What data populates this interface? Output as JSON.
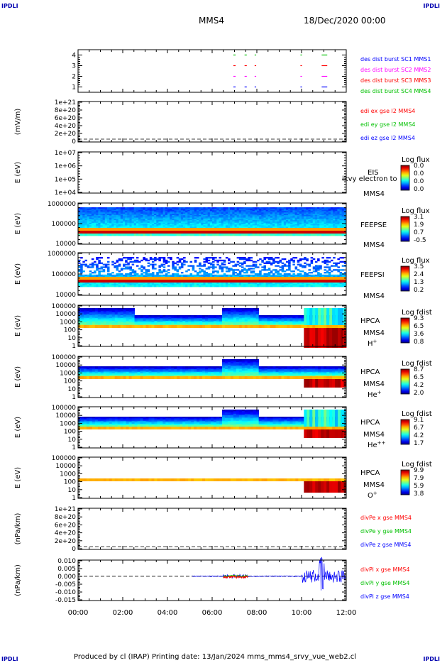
{
  "corners": {
    "tl": "IPDLI",
    "tr": "IPDLI",
    "bl": "IPDLI",
    "br": "IPDLI"
  },
  "header": {
    "spacecraft": "MMS4",
    "date": "18/Dec/2020 00:00"
  },
  "footer": "Produced by cl (IRAP)   Printing date: 13/Jan/2024   mms_mms4_srvy_vue_web2.cl",
  "chart_data": [
    {
      "type": "scatter",
      "id": "burst",
      "ylabel": "",
      "ytick_labels": [
        "4",
        "3",
        "2",
        "1"
      ],
      "ylim": [
        0.5,
        4.5
      ],
      "legend": [
        {
          "text": "des dist burst SC1 MMS1",
          "color": "#0000ff"
        },
        {
          "text": "des dist burst SC2 MMS2",
          "color": "#ff00ff"
        },
        {
          "text": "des dist burst SC3 MMS3",
          "color": "#ff0000"
        },
        {
          "text": "des dist burst SC4 MMS4",
          "color": "#00c000"
        }
      ],
      "burst_intervals_hours": [
        [
          6.95,
          7.05
        ],
        [
          7.45,
          7.55
        ],
        [
          7.9,
          7.97
        ],
        [
          9.95,
          10.02
        ],
        [
          10.9,
          11.15
        ]
      ]
    },
    {
      "type": "line",
      "id": "edi-e",
      "ylabel": "(mV/m)",
      "ytick_labels": [
        "1e+21",
        "8e+20",
        "6e+20",
        "4e+20",
        "2e+20",
        "0"
      ],
      "ylim": [
        0,
        1e+21
      ],
      "legend": [
        {
          "text": "edi ex gse l2 MMS4",
          "color": "#ff0000"
        },
        {
          "text": "edi ey gse l2 MMS4",
          "color": "#00c000"
        },
        {
          "text": "edi ez gse l2 MMS4",
          "color": "#0000ff"
        }
      ]
    },
    {
      "type": "heatmap",
      "id": "eis",
      "ylabel": "E (eV)",
      "ytick_labels": [
        "1e+07",
        "1e+06",
        "1e+05",
        "1e+04"
      ],
      "ylim": [
        10000.0,
        10000000.0
      ],
      "log_y": true,
      "label": "EIS",
      "sublabel": "MMS4",
      "overlay_text": "lkvy electron to",
      "colorbar": {
        "title": "Log flux",
        "ticks": [
          "0.0",
          "0.0",
          "0.0",
          "0.0"
        ]
      }
    },
    {
      "type": "heatmap",
      "id": "feepse",
      "ylabel": "E (eV)",
      "ytick_labels": [
        "1000000",
        "100000",
        "10000"
      ],
      "ylim": [
        10000.0,
        1000000.0
      ],
      "log_y": true,
      "label": "FEEPSE",
      "sublabel": "MMS4",
      "colorbar": {
        "title": "Log flux",
        "ticks": [
          "3.1",
          "1.9",
          "0.7",
          "-0.5"
        ]
      }
    },
    {
      "type": "heatmap",
      "id": "feepsi",
      "ylabel": "E (eV)",
      "ytick_labels": [
        "1000000",
        "100000",
        "10000"
      ],
      "ylim": [
        10000.0,
        1000000.0
      ],
      "log_y": true,
      "label": "FEEPSI",
      "sublabel": "MMS4",
      "colorbar": {
        "title": "Log flux",
        "ticks": [
          "3.5",
          "2.4",
          "1.3",
          "0.2"
        ]
      }
    },
    {
      "type": "heatmap",
      "id": "hpca-h",
      "ylabel": "E (eV)",
      "ytick_labels": [
        "100000",
        "10000",
        "1000",
        "100",
        "10",
        "1"
      ],
      "ylim": [
        1,
        100000.0
      ],
      "log_y": true,
      "label": "HPCA",
      "sublabel": "MMS4",
      "species": "H",
      "species_sup": "+",
      "colorbar": {
        "title": "Log fdist",
        "ticks": [
          "9.3",
          "6.5",
          "3.6",
          "0.8"
        ]
      }
    },
    {
      "type": "heatmap",
      "id": "hpca-he",
      "ylabel": "E (eV)",
      "ytick_labels": [
        "100000",
        "10000",
        "1000",
        "100",
        "10",
        "1"
      ],
      "ylim": [
        1,
        100000.0
      ],
      "log_y": true,
      "label": "HPCA",
      "sublabel": "MMS4",
      "species": "He",
      "species_sup": "+",
      "colorbar": {
        "title": "Log fdist",
        "ticks": [
          "8.7",
          "6.5",
          "4.2",
          "2.0"
        ]
      }
    },
    {
      "type": "heatmap",
      "id": "hpca-hepp",
      "ylabel": "E (eV)",
      "ytick_labels": [
        "100000",
        "10000",
        "1000",
        "100",
        "10",
        "1"
      ],
      "ylim": [
        1,
        100000.0
      ],
      "log_y": true,
      "label": "HPCA",
      "sublabel": "MMS4",
      "species": "He",
      "species_sup": "++",
      "colorbar": {
        "title": "Log fdist",
        "ticks": [
          "9.1",
          "6.7",
          "4.2",
          "1.7"
        ]
      }
    },
    {
      "type": "heatmap",
      "id": "hpca-o",
      "ylabel": "E (eV)",
      "ytick_labels": [
        "100000",
        "10000",
        "1000",
        "100",
        "10",
        "1"
      ],
      "ylim": [
        1,
        100000.0
      ],
      "log_y": true,
      "label": "HPCA",
      "sublabel": "MMS4",
      "species": "O",
      "species_sup": "+",
      "colorbar": {
        "title": "Log fdist",
        "ticks": [
          "9.9",
          "7.9",
          "5.9",
          "3.8"
        ]
      }
    },
    {
      "type": "line",
      "id": "divpe",
      "ylabel": "(nPa/km)",
      "ytick_labels": [
        "1e+21",
        "8e+20",
        "6e+20",
        "4e+20",
        "2e+20",
        "0"
      ],
      "ylim": [
        0,
        1e+21
      ],
      "legend": [
        {
          "text": "divPe x gse MMS4",
          "color": "#ff0000"
        },
        {
          "text": "divPe y gse MMS4",
          "color": "#00c000"
        },
        {
          "text": "divPe z gse MMS4",
          "color": "#0000ff"
        }
      ]
    },
    {
      "type": "line",
      "id": "divpi",
      "ylabel": "(nPa/km)",
      "ytick_labels": [
        "0.010",
        "0.005",
        "0.000",
        "-0.005",
        "-0.010",
        "-0.015"
      ],
      "ylim": [
        -0.015,
        0.01
      ],
      "legend": [
        {
          "text": "divPi x gse MMS4",
          "color": "#ff0000"
        },
        {
          "text": "divPi y gse MMS4",
          "color": "#00c000"
        },
        {
          "text": "divPi z gse MMS4",
          "color": "#0000ff"
        }
      ]
    }
  ],
  "time_axis": {
    "ticks": [
      "00:00",
      "02:00",
      "04:00",
      "06:00",
      "08:00",
      "10:00",
      "12:00"
    ],
    "range_hours": [
      0,
      12
    ]
  }
}
